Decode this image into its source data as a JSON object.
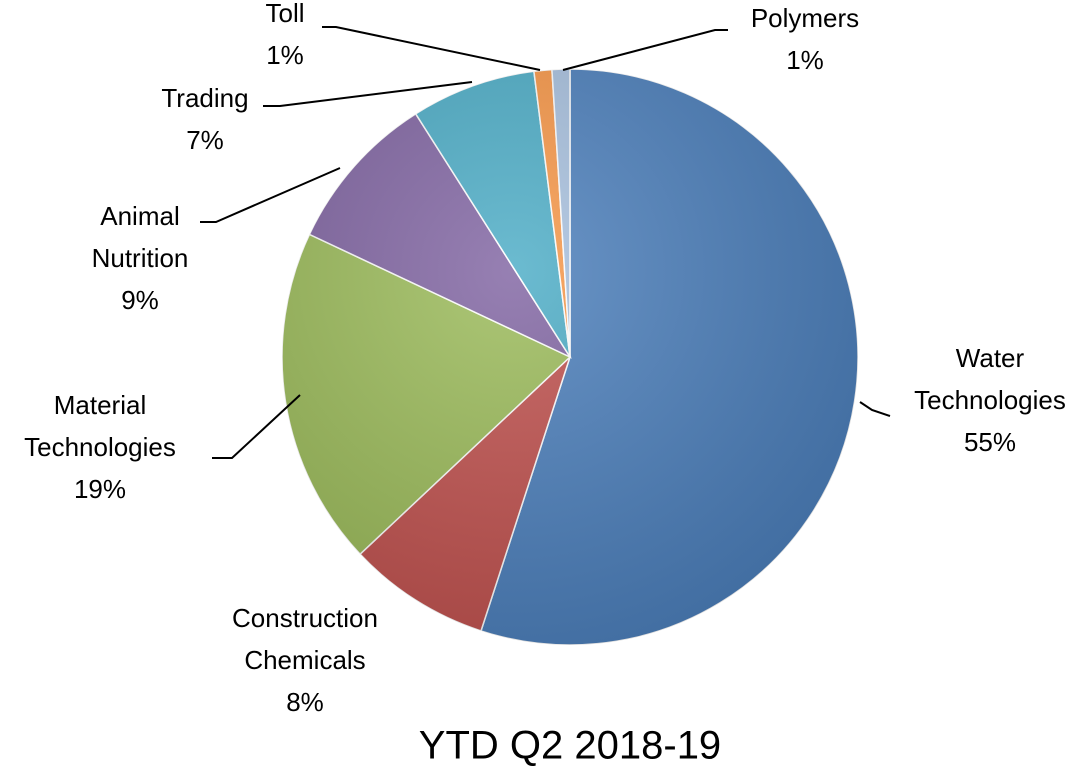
{
  "chart_data": {
    "type": "pie",
    "title": "YTD Q2 2018-19",
    "categories": [
      "Water Technologies",
      "Construction Chemicals",
      "Material Technologies",
      "Animal Nutrition",
      "Trading",
      "Toll",
      "Polymers"
    ],
    "values": [
      55,
      8,
      19,
      9,
      7,
      1,
      1
    ],
    "value_labels": [
      "55%",
      "8%",
      "19%",
      "9%",
      "7%",
      "1%",
      "1%"
    ],
    "colors": [
      "#4a7ebb",
      "#c0504d",
      "#9bbb59",
      "#8064a2",
      "#4bacc6",
      "#f79646",
      "#a7c0de"
    ]
  }
}
